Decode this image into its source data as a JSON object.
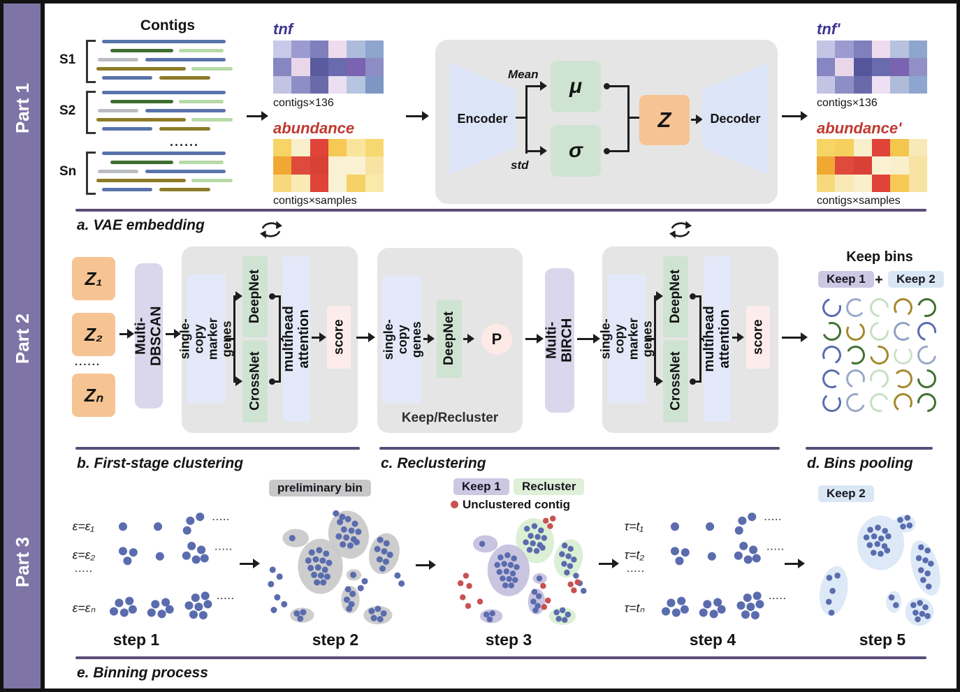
{
  "figure": {
    "parts": [
      "Part 1",
      "Part 2",
      "Part 3"
    ]
  },
  "sections": {
    "a": "a. VAE embedding",
    "b": "b. First-stage clustering",
    "c": "c. Reclustering",
    "d": "d. Bins pooling",
    "e": "e. Binning process"
  },
  "part1": {
    "contigs_title": "Contigs",
    "samples": [
      "S1",
      "S2",
      "Sn"
    ],
    "ellipsis": "......",
    "tnf": {
      "label": "tnf",
      "sublabel": "contigs×136",
      "cells": [
        [
          "#c8c8e8",
          "#9b9bd1",
          "#7f7fbc",
          "#eedcee",
          "#aebcdc",
          "#8ea5ce"
        ],
        [
          "#8686c3",
          "#e9d7e9",
          "#5a5a9e",
          "#6a6aae",
          "#7a63b0",
          "#8d8dc5"
        ],
        [
          "#c3c3e3",
          "#8e8ec7",
          "#6a6aaa",
          "#ebdff1",
          "#b5c5df",
          "#7e96c3"
        ]
      ]
    },
    "abundance": {
      "label": "abundance",
      "sublabel": "contigs×samples",
      "cells": [
        [
          "#f6d466",
          "#f9efcc",
          "#e04338",
          "#f7c954",
          "#f9e49c",
          "#f7d870"
        ],
        [
          "#f0a833",
          "#de4a3c",
          "#da4136",
          "#faf1d3",
          "#faf1d3",
          "#f8e3a3"
        ],
        [
          "#f7d97d",
          "#f9eab5",
          "#e04338",
          "#f9f1d3",
          "#f6d166",
          "#f9eaa9"
        ]
      ]
    },
    "tnf_out": {
      "label": "tnf'",
      "sublabel": "contigs×136",
      "cells": [
        [
          "#c4c4e4",
          "#9b9bd1",
          "#8080bd",
          "#eedcee",
          "#b6c2de",
          "#8ea5ce"
        ],
        [
          "#8686c3",
          "#e9d7e9",
          "#55559b",
          "#6a6aae",
          "#7a63b0",
          "#9090c6"
        ],
        [
          "#c3c3e3",
          "#8e8ec7",
          "#6a6aaa",
          "#eedff2",
          "#aebcda",
          "#8ea6cf"
        ]
      ]
    },
    "abundance_out": {
      "label": "abundance'",
      "sublabel": "contigs×samples",
      "cells": [
        [
          "#f6d466",
          "#f6d05e",
          "#f9efcc",
          "#e04338",
          "#f3c64e",
          "#f9e9b8"
        ],
        [
          "#f0a833",
          "#de4a3c",
          "#da4136",
          "#faf1d3",
          "#f9efcc",
          "#f8e3a3"
        ],
        [
          "#f7d97d",
          "#f9eab5",
          "#f9efcc",
          "#e04338",
          "#f7c954",
          "#f8e3a3"
        ]
      ]
    },
    "vae": {
      "encoder": "Encoder",
      "mean_label": "Mean",
      "std_label": "std",
      "mu": "μ",
      "sigma": "σ",
      "z": "Z",
      "decoder": "Decoder"
    }
  },
  "part2": {
    "z_inputs": [
      "Z₁",
      "Z₂",
      "Zₙ"
    ],
    "ellipsis": "......",
    "multi_dbscan": "Multi-DBSCAN",
    "multi_birch": "Multi-BIRCH",
    "stage1": {
      "marker_genes": "single-copy\nmarker genes",
      "deepnet": "DeepNet",
      "crossnet": "CrossNet",
      "attention": "multihead attention",
      "score": "score"
    },
    "keep_recluster": {
      "genes": "single-copy\ngenes",
      "deepnet": "DeepNet",
      "p": "P",
      "label": "Keep/Recluster"
    },
    "stage2": {
      "marker_genes": "single-copy\nmarker genes",
      "deepnet": "DeepNet",
      "crossnet": "CrossNet",
      "attention": "multihead attention",
      "score": "score"
    },
    "keep_bins": {
      "title": "Keep bins",
      "keep1": "Keep 1",
      "plus": "+",
      "keep2": "Keep 2",
      "ring_colors": [
        "#5a6cae",
        "#9aa8c9",
        "#c7dfc3",
        "#a3892b",
        "#3f6f31",
        "#3f6f31",
        "#a3892b",
        "#c7dfc3",
        "#8fa0c6",
        "#5a6cae",
        "#5a6cae",
        "#3f6f31",
        "#a3892b",
        "#cde3ca",
        "#9aa8c9",
        "#5a6cae",
        "#9aa8c9",
        "#c7dfc3",
        "#a3892b",
        "#3f6f31",
        "#5a6cae",
        "#9aa8c9",
        "#c7dfc3",
        "#a3892b",
        "#3f6f31"
      ]
    }
  },
  "part3": {
    "step1": {
      "rows": [
        "ε=ε₁",
        "ε=ε₂",
        "ε=εₙ"
      ],
      "dots": ".....",
      "label": "step 1"
    },
    "step2": {
      "badge": "preliminary bin",
      "label": "step 2"
    },
    "step3": {
      "keep1": "Keep 1",
      "recluster": "Recluster",
      "unclustered": "Unclustered contig",
      "label": "step 3"
    },
    "step4": {
      "rows": [
        "τ=t₁",
        "τ=t₂",
        "τ=tₙ"
      ],
      "dots": ".....",
      "label": "step 4"
    },
    "step5": {
      "badge": "Keep 2",
      "label": "step 5"
    }
  },
  "icons": {
    "refresh-icon": "⟳",
    "arrow-icon": "→",
    "bullet-dot": "●",
    "plus-icon": "+"
  },
  "colors": {
    "sidebar": "#7e74a5",
    "divider": "#5a4e78",
    "panel_gray": "#e6e5e5",
    "box_orange": "#f6c493",
    "box_lavender": "#dad6eb",
    "box_blue": "#e3e9f8",
    "box_green": "#cfe3d2",
    "box_score": "#fcedec",
    "dot_blue": "#5a6cae",
    "dot_red": "#c85252",
    "ellipse_gray": "#c9c9c9",
    "ellipse_keep1": "#c6c1de",
    "ellipse_recluster": "#d9eed3",
    "ellipse_keep2": "#dbe8f6",
    "tnf_text": "#3d3591",
    "abundance_text": "#c0392f"
  }
}
